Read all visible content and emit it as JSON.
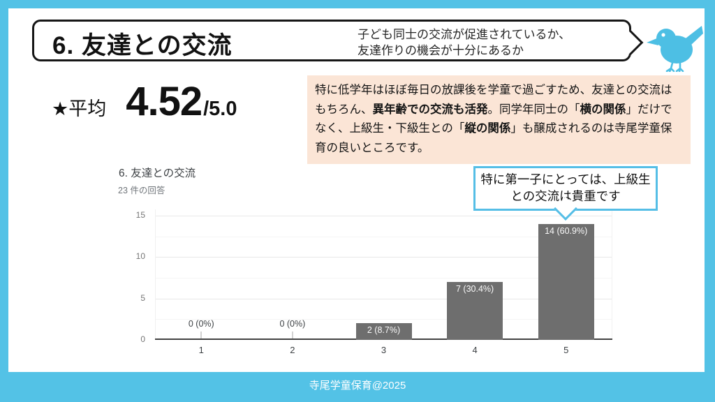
{
  "slide": {
    "frame_color": "#53C2E6",
    "footer": "寺尾学童保育@2025"
  },
  "header": {
    "title": "6. 友達との交流",
    "subtitle_line1": "子ども同士の交流が促進されているか、",
    "subtitle_line2": "友達作りの機会が十分にあるか",
    "bird_icon_color": "#4DBFE4"
  },
  "average": {
    "label": "★平均",
    "value": "4.52",
    "denominator": "/5.0"
  },
  "highlight_box": {
    "bg_color": "#FBE5D6",
    "segments": [
      {
        "text": "特に低学年はほぼ毎日の放課後を学童で過ごすため、友達との交流はもちろん、",
        "bold": false
      },
      {
        "text": "異年齢での交流も活発",
        "bold": true
      },
      {
        "text": "。同学年同士の「",
        "bold": false
      },
      {
        "text": "横の関係",
        "bold": true
      },
      {
        "text": "」だけでなく、上級生・下級生との「",
        "bold": false
      },
      {
        "text": "縦の関係",
        "bold": true
      },
      {
        "text": "」も醸成されるのは寺尾学童保育の良いところです。",
        "bold": false
      }
    ]
  },
  "callout": {
    "line1": "特に第一子にとっては、上級生",
    "line2": "との交流は貴重です",
    "border_color": "#55BEE6"
  },
  "chart_data": {
    "type": "bar",
    "title": "6. 友達との交流",
    "subtitle": "23 件の回答",
    "categories": [
      "1",
      "2",
      "3",
      "4",
      "5"
    ],
    "values": [
      0,
      0,
      2,
      7,
      14
    ],
    "labels": [
      "0 (0%)",
      "0 (0%)",
      "2 (8.7%)",
      "7 (30.4%)",
      "14 (60.9%)"
    ],
    "total_responses": 23,
    "ylim": [
      0,
      15
    ],
    "yticks": [
      0,
      5,
      10,
      15
    ],
    "bar_color": "#6E6E6E",
    "grid": true,
    "legend": "none",
    "xlabel": "",
    "ylabel": ""
  }
}
